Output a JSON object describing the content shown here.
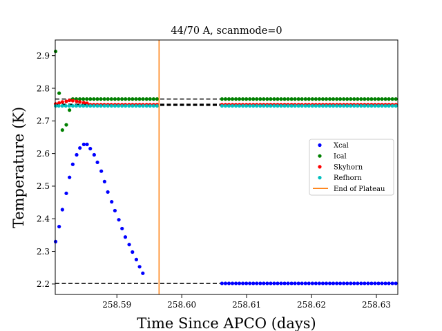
{
  "chart_data": {
    "type": "scatter",
    "title": "44/70 A, scanmode=0",
    "xlabel": "Time Since APCO (days)",
    "ylabel": "Temperature (K)",
    "xlim": [
      258.5805,
      258.6333
    ],
    "ylim": [
      2.168,
      2.948
    ],
    "xticks": [
      258.59,
      258.6,
      258.61,
      258.62,
      258.63
    ],
    "xtick_labels": [
      "258.59",
      "258.60",
      "258.61",
      "258.62",
      "258.63"
    ],
    "yticks": [
      2.2,
      2.3,
      2.4,
      2.5,
      2.6,
      2.7,
      2.8,
      2.9
    ],
    "ytick_labels": [
      "2.2",
      "2.3",
      "2.4",
      "2.5",
      "2.6",
      "2.7",
      "2.8",
      "2.9"
    ],
    "legend_position": "center-right",
    "vline": {
      "x": 258.5965,
      "color": "#ff7f0e",
      "name": "End of Plateau"
    },
    "hlines": [
      {
        "y": 2.767,
        "color": "#000000",
        "style": "dashed"
      },
      {
        "y": 2.751,
        "color": "#000000",
        "style": "dashed"
      },
      {
        "y": 2.747,
        "color": "#000000",
        "style": "dashed"
      },
      {
        "y": 2.202,
        "color": "#000000",
        "style": "dashed"
      }
    ],
    "series": [
      {
        "name": "Xcal",
        "color": "#0000ff",
        "segments": [
          {
            "x": [
              258.5805,
              258.5811,
              258.5816,
              258.5822,
              258.5827,
              258.5832,
              258.5838,
              258.5843,
              258.5849,
              258.5854,
              258.5859,
              258.5865,
              258.587,
              258.5876,
              258.5881,
              258.5886,
              258.5892,
              258.5897,
              258.5903,
              258.5908,
              258.5913,
              258.5919,
              258.5924,
              258.593,
              258.5935,
              258.594,
              258.5946,
              258.5951,
              258.5957,
              258.5962
            ],
            "y": [
              2.33,
              2.376,
              2.428,
              2.478,
              2.527,
              2.567,
              2.596,
              2.617,
              2.628,
              2.628,
              2.615,
              2.596,
              2.573,
              2.546,
              2.514,
              2.482,
              2.452,
              2.425,
              2.397,
              2.37,
              2.344,
              2.321,
              2.298,
              2.275,
              2.253,
              2.233,
              null,
              null,
              null,
              null
            ]
          },
          {
            "x_start": 258.6062,
            "x_end": 258.633,
            "count": 51,
            "y": 2.202
          }
        ]
      },
      {
        "name": "Ical",
        "color": "#008000",
        "segments": [
          {
            "x": [
              258.5805,
              258.5811,
              258.5816,
              258.5822,
              258.5827
            ],
            "y": [
              2.913,
              2.785,
              2.672,
              2.688,
              2.733
            ]
          },
          {
            "x_start": 258.5832,
            "x_end": 258.5962,
            "count": 25,
            "y": 2.767
          },
          {
            "x_start": 258.6062,
            "x_end": 258.633,
            "count": 51,
            "y": 2.767
          }
        ]
      },
      {
        "name": "Skyhorn",
        "color": "#ff0000",
        "segments": [
          {
            "x": [
              258.5805,
              258.5811,
              258.5816,
              258.5822,
              258.5827,
              258.5832,
              258.5838,
              258.5843,
              258.5849,
              258.5854
            ],
            "y": [
              2.752,
              2.755,
              2.758,
              2.76,
              2.763,
              2.762,
              2.76,
              2.758,
              2.756,
              2.754
            ]
          },
          {
            "x_start": 258.5859,
            "x_end": 258.5962,
            "count": 20,
            "y": 2.75
          },
          {
            "x_start": 258.6062,
            "x_end": 258.633,
            "count": 51,
            "y": 2.75
          }
        ]
      },
      {
        "name": "Refhorn",
        "color": "#00bfbf",
        "segments": [
          {
            "x_start": 258.5805,
            "x_end": 258.5962,
            "count": 30,
            "y": 2.746
          },
          {
            "x_start": 258.6062,
            "x_end": 258.633,
            "count": 51,
            "y": 2.746
          }
        ]
      }
    ]
  }
}
